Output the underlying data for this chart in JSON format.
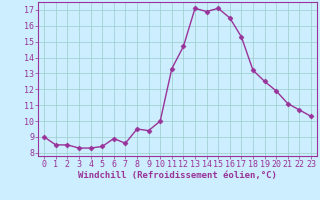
{
  "x": [
    0,
    1,
    2,
    3,
    4,
    5,
    6,
    7,
    8,
    9,
    10,
    11,
    12,
    13,
    14,
    15,
    16,
    17,
    18,
    19,
    20,
    21,
    22,
    23
  ],
  "y": [
    9.0,
    8.5,
    8.5,
    8.3,
    8.3,
    8.4,
    8.9,
    8.6,
    9.5,
    9.4,
    10.0,
    13.3,
    14.7,
    17.1,
    16.9,
    17.1,
    16.5,
    15.3,
    13.2,
    12.5,
    11.9,
    11.1,
    10.7,
    10.3
  ],
  "line_color": "#993399",
  "marker": "D",
  "marker_size": 2.5,
  "bg_color": "#cceeff",
  "grid_color": "#99cccc",
  "xlabel": "Windchill (Refroidissement éolien,°C)",
  "xlabel_fontsize": 6.5,
  "xlabel_color": "#993399",
  "tick_color": "#993399",
  "ylim": [
    7.8,
    17.5
  ],
  "yticks": [
    8,
    9,
    10,
    11,
    12,
    13,
    14,
    15,
    16,
    17
  ],
  "xlim": [
    -0.5,
    23.5
  ],
  "xticks": [
    0,
    1,
    2,
    3,
    4,
    5,
    6,
    7,
    8,
    9,
    10,
    11,
    12,
    13,
    14,
    15,
    16,
    17,
    18,
    19,
    20,
    21,
    22,
    23
  ],
  "tick_fontsize": 6.0,
  "line_width": 1.0
}
